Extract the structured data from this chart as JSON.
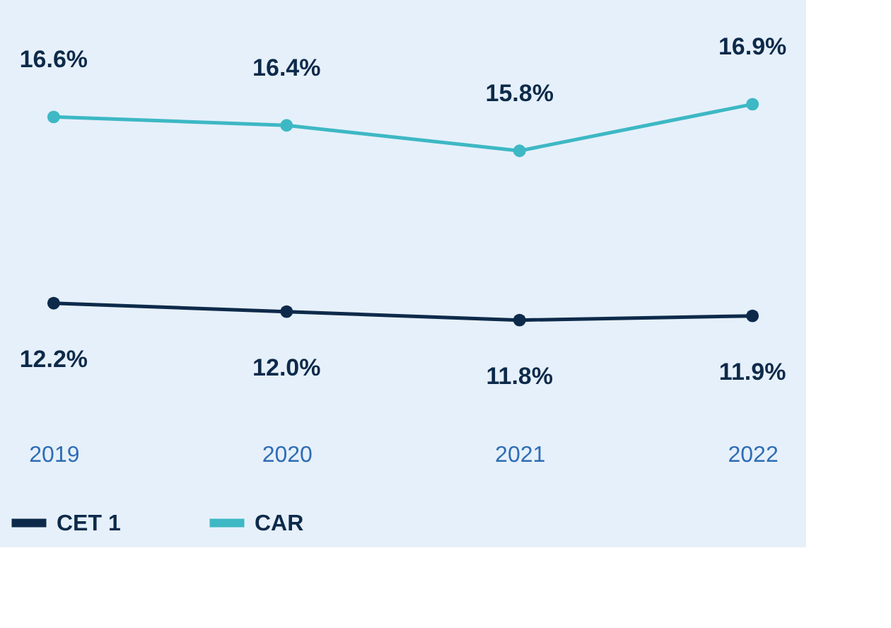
{
  "chart_data": {
    "type": "line",
    "categories": [
      "2019",
      "2020",
      "2021",
      "2022"
    ],
    "series": [
      {
        "name": "CET 1",
        "color": "#0d2a4a",
        "values": [
          12.2,
          12.0,
          11.8,
          11.9
        ],
        "value_labels": [
          "12.2%",
          "12.0%",
          "11.8%",
          "11.9%"
        ]
      },
      {
        "name": "CAR",
        "color": "#3db8c4",
        "values": [
          16.6,
          16.4,
          15.8,
          16.9
        ],
        "value_labels": [
          "16.6%",
          "16.4%",
          "15.8%",
          "16.9%"
        ]
      }
    ],
    "marker": "circle",
    "legend": "bottom",
    "grid": false
  }
}
